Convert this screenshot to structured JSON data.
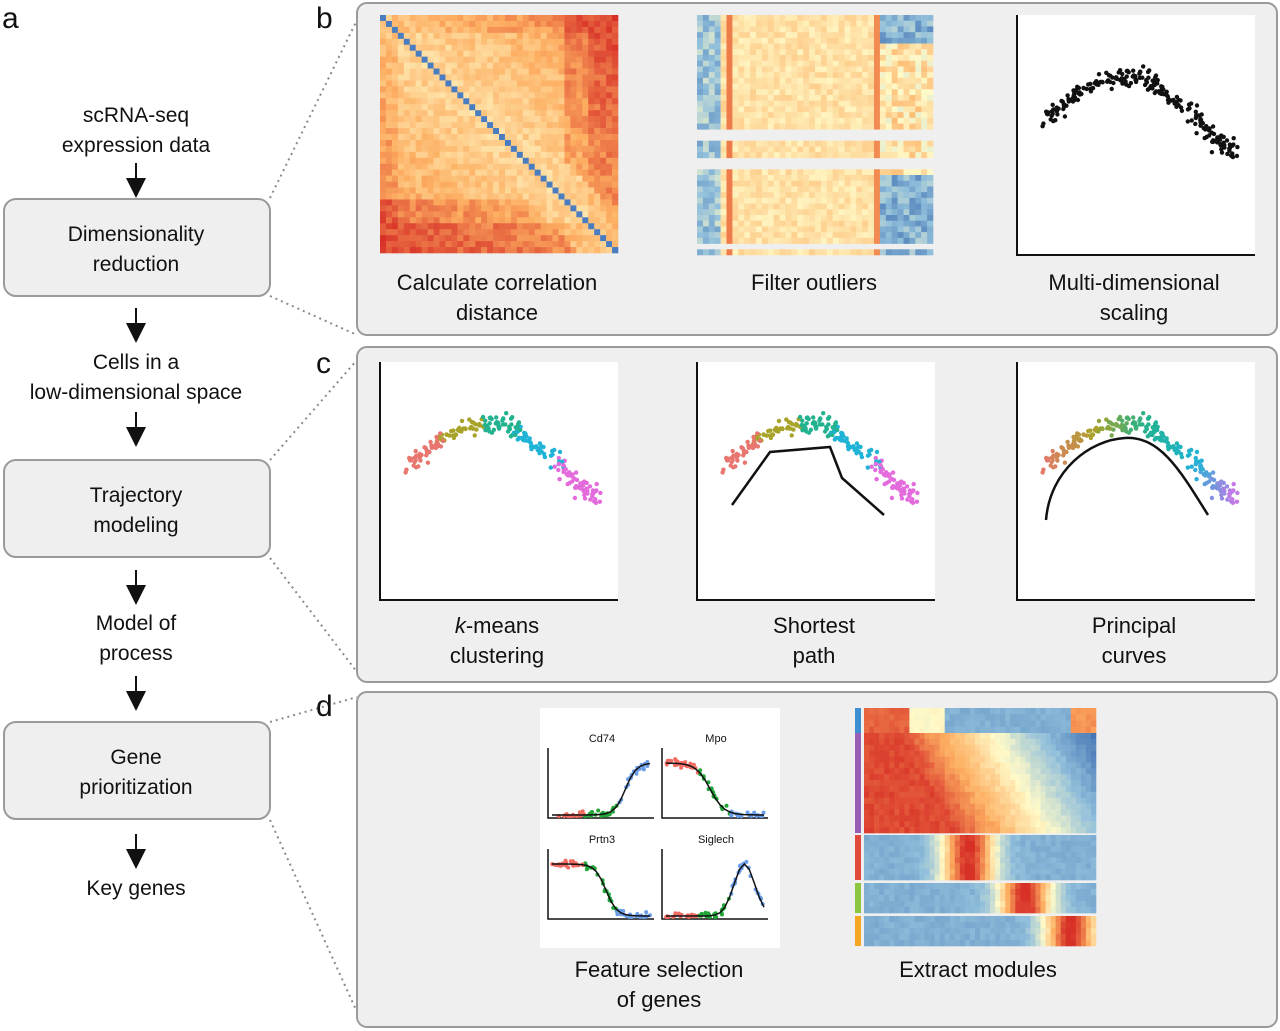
{
  "panel_labels": {
    "a": "a",
    "b": "b",
    "c": "c",
    "d": "d"
  },
  "flow": {
    "input": [
      "scRNA-seq",
      "expression data"
    ],
    "step1": [
      "Dimensionality",
      "reduction"
    ],
    "out1": [
      "Cells in a",
      "low-dimensional space"
    ],
    "step2": [
      "Trajectory",
      "modeling"
    ],
    "out2": [
      "Model of",
      "process"
    ],
    "step3": [
      "Gene",
      "prioritization"
    ],
    "out3": [
      "Key genes"
    ]
  },
  "panel_b": {
    "captions": [
      [
        "Calculate correlation",
        "distance"
      ],
      [
        "Filter outliers"
      ],
      [
        "Multi-dimensional",
        "scaling"
      ]
    ]
  },
  "panel_c": {
    "captions": [
      {
        "italic": "k",
        "rest": "-means",
        "line2": "clustering"
      },
      [
        "Shortest",
        "path"
      ],
      [
        "Principal",
        "curves"
      ]
    ]
  },
  "panel_d": {
    "genes": [
      "Cd74",
      "Mpo",
      "Prtn3",
      "Siglech"
    ],
    "captions": [
      [
        "Feature selection",
        "of genes"
      ],
      [
        "Extract modules"
      ]
    ],
    "module_colors": [
      "#3d8fd1",
      "#9a5fb5",
      "#e04a3c",
      "#8cc63f",
      "#f5a623"
    ]
  },
  "colors": {
    "box_fill": "#efefef",
    "box_stroke": "#9a9a9a",
    "heat_low": "#4a7cc0",
    "heat_high": "#d73027",
    "cluster_1": "#e8766f",
    "cluster_2": "#a8a329",
    "cluster_3": "#22b28f",
    "cluster_4": "#1fb3d6",
    "cluster_5": "#e36bdc",
    "gene_red": "#f06b62",
    "gene_green": "#22a63a",
    "gene_blue": "#6a9de8"
  }
}
